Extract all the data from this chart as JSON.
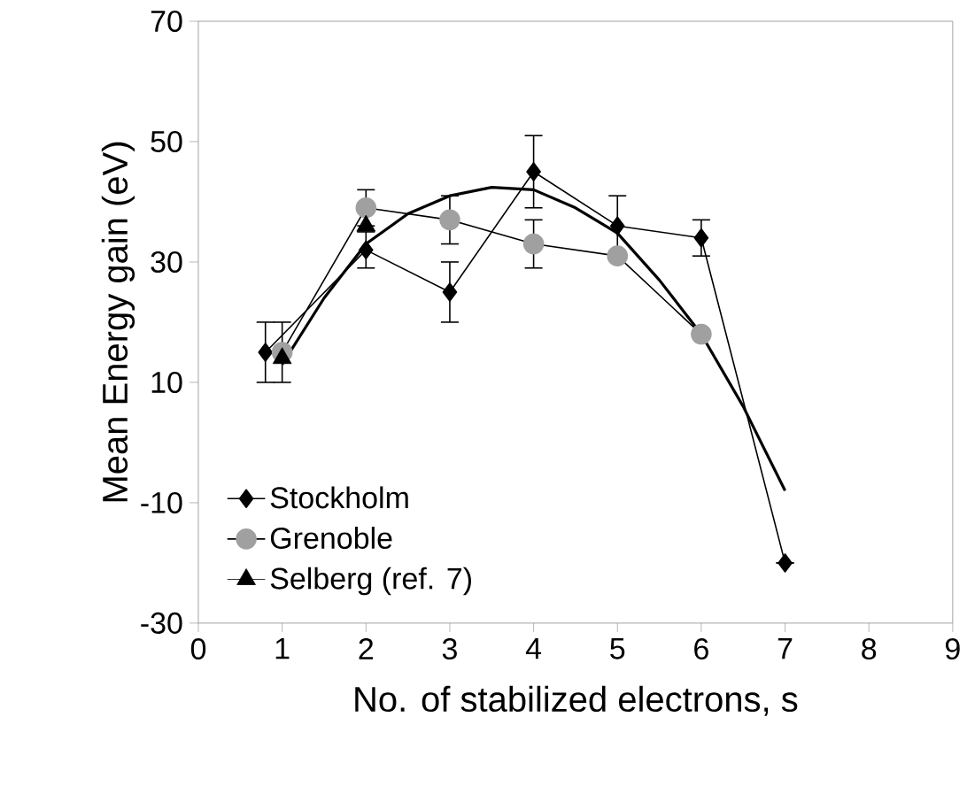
{
  "chart_data": {
    "type": "line",
    "xlabel": "No. of stabilized electrons, s",
    "ylabel": "Mean Energy gain (eV)",
    "xlim": [
      0,
      9
    ],
    "ylim": [
      -30,
      70
    ],
    "xticks": [
      0,
      1,
      2,
      3,
      4,
      5,
      6,
      7,
      8,
      9
    ],
    "yticks": [
      -30,
      -10,
      10,
      30,
      50,
      70
    ],
    "legend": "bottom left",
    "grid": false,
    "series": [
      {
        "name": "Stockholm",
        "type": "line",
        "marker": "diamond",
        "color": "#000000",
        "x": [
          0.8,
          2,
          3,
          4,
          5,
          6,
          7
        ],
        "values": [
          15,
          32,
          25,
          45,
          36,
          34,
          -20
        ],
        "errors": [
          5,
          3,
          5,
          6,
          5,
          3,
          null
        ]
      },
      {
        "name": "Grenoble",
        "type": "line",
        "marker": "circle",
        "color": "#a0a0a0",
        "x": [
          1,
          2,
          3,
          4,
          5,
          6
        ],
        "values": [
          15,
          39,
          37,
          33,
          31,
          18
        ],
        "errors": [
          5,
          3,
          4,
          4,
          null,
          null
        ]
      },
      {
        "name": "Selberg (ref. 7)",
        "type": "scatter",
        "marker": "triangle",
        "color": "#000000",
        "x": [
          1,
          2
        ],
        "values": [
          14,
          36
        ]
      },
      {
        "type": "line",
        "marker": "none",
        "color": "#000000",
        "x": [
          1,
          1.5,
          2,
          2.5,
          3,
          3.5,
          4,
          4.5,
          5,
          5.5,
          6,
          6.5,
          7
        ],
        "values": [
          13,
          24,
          33,
          38,
          41,
          42.4,
          42,
          39,
          34.8,
          27,
          18,
          6,
          -8
        ]
      }
    ]
  }
}
